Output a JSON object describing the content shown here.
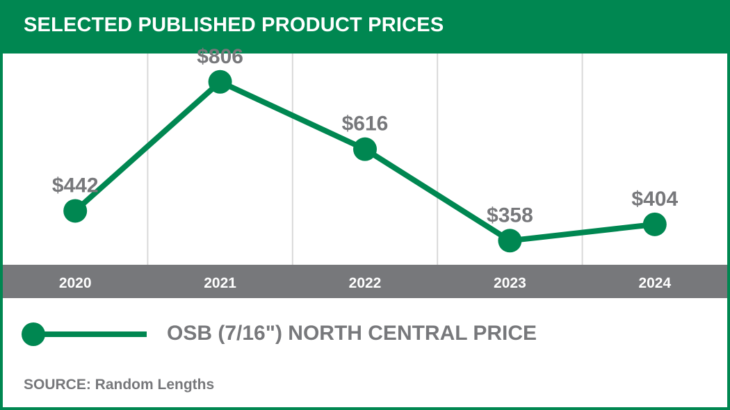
{
  "header": {
    "title": "SELECTED PUBLISHED PRODUCT PRICES"
  },
  "colors": {
    "accent": "#008751",
    "axis_band": "#77787b",
    "label_text": "#77787b",
    "grid": "#d9d9d9"
  },
  "chart_data": {
    "type": "line",
    "title": "SELECTED PUBLISHED PRODUCT PRICES",
    "categories": [
      "2020",
      "2021",
      "2022",
      "2023",
      "2024"
    ],
    "series": [
      {
        "name": "OSB (7/16\") NORTH CENTRAL PRICE",
        "values": [
          442,
          806,
          616,
          358,
          404
        ],
        "labels": [
          "$442",
          "$806",
          "$616",
          "$358",
          "$404"
        ]
      }
    ],
    "xlabel": "",
    "ylabel": "",
    "ylim": [
      290,
      880
    ],
    "grid": "vertical",
    "legend": "bottom-left"
  },
  "legend": {
    "label": "OSB (7/16\") NORTH CENTRAL PRICE"
  },
  "source": {
    "text": "SOURCE: Random Lengths"
  }
}
